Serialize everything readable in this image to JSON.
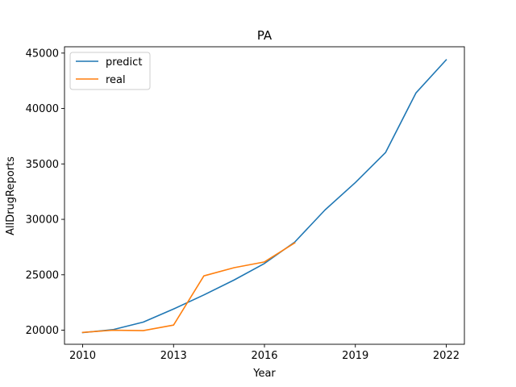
{
  "chart_data": {
    "type": "line",
    "title": "PA",
    "xlabel": "Year",
    "ylabel": "AllDrugReports",
    "xlim": [
      2009.4,
      2022.6
    ],
    "ylim": [
      18730,
      45570
    ],
    "xticks": [
      2010,
      2013,
      2016,
      2019,
      2022
    ],
    "yticks": [
      20000,
      25000,
      30000,
      35000,
      40000,
      45000
    ],
    "grid": false,
    "legend_position": "top-left",
    "series": [
      {
        "name": "predict",
        "color": "#1f77b4",
        "x": [
          2010,
          2011,
          2012,
          2013,
          2014,
          2015,
          2016,
          2017,
          2018,
          2019,
          2020,
          2021,
          2022
        ],
        "y": [
          19780,
          20050,
          20730,
          21910,
          23180,
          24530,
          26020,
          27950,
          30850,
          33320,
          36040,
          41400,
          44390
        ]
      },
      {
        "name": "real",
        "color": "#ff7f0e",
        "x": [
          2010,
          2011,
          2012,
          2013,
          2014,
          2015,
          2016,
          2017
        ],
        "y": [
          19800,
          20000,
          19960,
          20460,
          24900,
          25640,
          26160,
          27880
        ]
      }
    ]
  }
}
